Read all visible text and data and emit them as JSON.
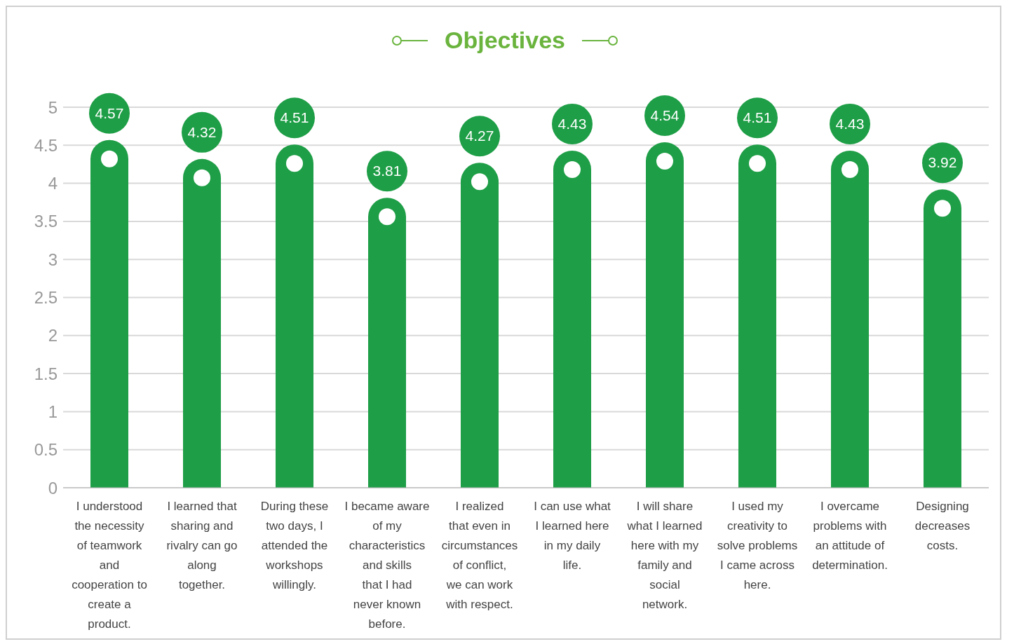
{
  "chart_data": {
    "type": "bar",
    "title": "Objectives",
    "categories": [
      "I understood the necessity of teamwork and cooperation to create a product.",
      "I learned that sharing and rivalry can go along together.",
      "During these two days, I attended the workshops willingly.",
      "I became aware of my characteristics and skills that I had never known before.",
      "I realized that even in circumstances of conflict, we can work with respect.",
      "I can use what I learned here in my daily life.",
      "I will share what I learned here with my family and social network.",
      "I used my creativity to solve problems I came across here.",
      "I overcame problems with an attitude of determination.",
      "Designing decreases costs."
    ],
    "values": [
      4.57,
      4.32,
      4.51,
      3.81,
      4.27,
      4.43,
      4.54,
      4.51,
      4.43,
      3.92
    ],
    "color": "#1e9e46",
    "ylim": [
      0,
      5
    ],
    "yticks": [
      0,
      0.5,
      1,
      1.5,
      2,
      2.5,
      3,
      3.5,
      4,
      4.5,
      5
    ],
    "grid": "y",
    "data_labels": true,
    "legend": false
  }
}
